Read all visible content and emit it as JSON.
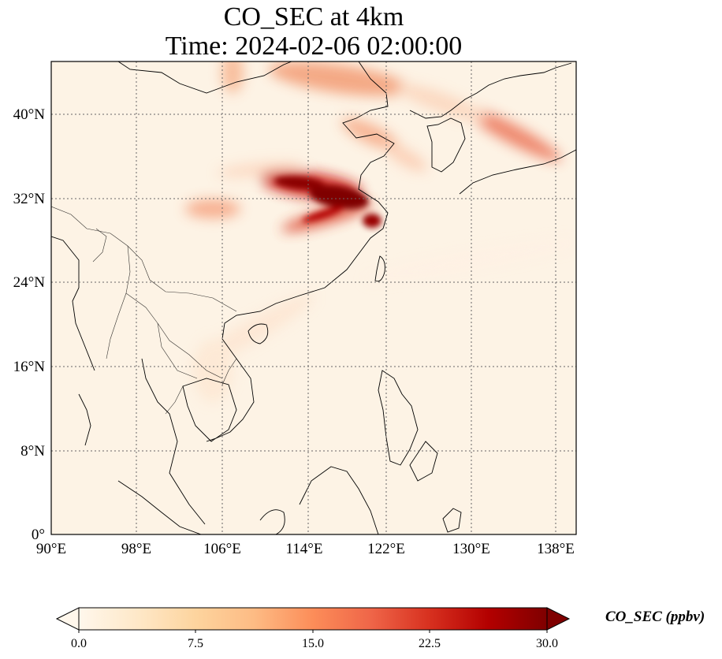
{
  "figure": {
    "title_line1": "CO_SEC at 4km",
    "title_line2": "Time: 2024-02-06 02:00:00"
  },
  "map": {
    "extent": {
      "lon": [
        90,
        139
      ],
      "lat": [
        0,
        44.5
      ]
    },
    "lon_ticks": [
      "90°E",
      "98°E",
      "106°E",
      "114°E",
      "122°E",
      "130°E",
      "138°E"
    ],
    "lat_ticks": [
      "0°",
      "8°N",
      "16°N",
      "24°N",
      "32°N",
      "40°N"
    ],
    "gridlines": "dotted",
    "coastlines": true,
    "borders": true,
    "colormap": "OrRd"
  },
  "colorbar": {
    "label": "CO_SEC (ppbv)",
    "ticks": [
      "0.0",
      "7.5",
      "15.0",
      "22.5",
      "30.0"
    ],
    "range": [
      0,
      30
    ],
    "extend": "both",
    "colors": [
      "#fff7ec",
      "#fee8c8",
      "#fdd49e",
      "#fdbb84",
      "#fc8d59",
      "#ef6548",
      "#d7301f",
      "#b30000",
      "#7f0000"
    ]
  }
}
